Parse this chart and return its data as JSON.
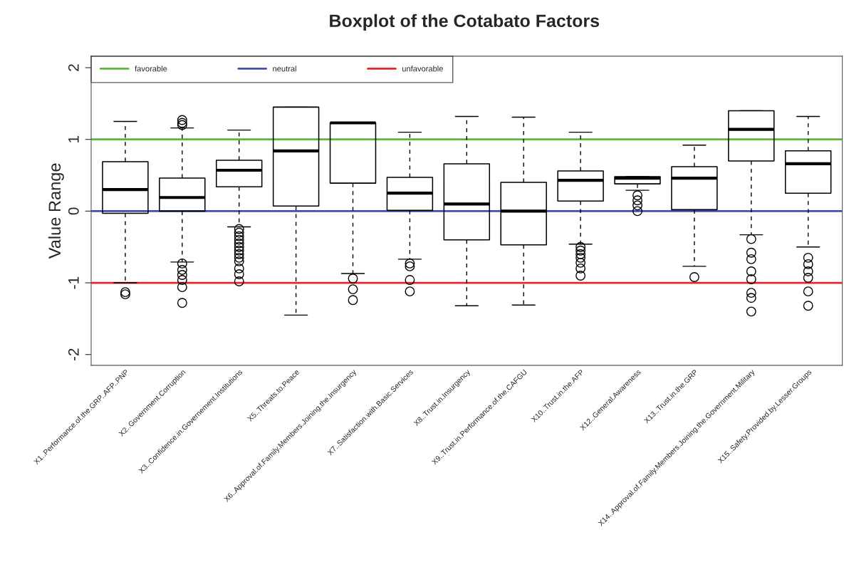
{
  "chart_data": {
    "type": "box",
    "title": "Boxplot of the Cotabato Factors",
    "ylabel": "Value Range",
    "categories": [
      "X1..Performance.of.the.GRP..AFP..PNP",
      "X2..Government.Corruption",
      "X3..Confidence.in.Governement.Institutions",
      "X5..Threats.to.Peace",
      "X6..Approval.of.Family.Members.Joining.the.Insurgency",
      "X7..Satisfaction.with.Basic.Services",
      "X8..Trust.in.Insurgency",
      "X9..Trust.in.Performance.of.the.CAFGU",
      "X10..Trust.in.the.AFP",
      "X12..General.Awareness",
      "X13..Trust.in.the.GRP",
      "X14..Approval.of.Family.Members.Joining.the.Government.Military",
      "X15..Safety.Provided.by.Lesser.Groups"
    ],
    "boxes": [
      {
        "low": -1.0,
        "q1": -0.03,
        "median": 0.3,
        "q3": 0.69,
        "high": 1.25,
        "outliers": [
          -1.13,
          -1.16
        ]
      },
      {
        "low": -0.71,
        "q1": 0.0,
        "median": 0.19,
        "q3": 0.46,
        "high": 1.16,
        "outliers": [
          1.2,
          1.23,
          1.27,
          -0.73,
          -0.82,
          -0.89,
          -0.96,
          -1.06,
          -1.28
        ]
      },
      {
        "low": -0.22,
        "q1": 0.34,
        "median": 0.57,
        "q3": 0.71,
        "high": 1.13,
        "outliers": [
          -0.25,
          -0.3,
          -0.35,
          -0.4,
          -0.45,
          -0.5,
          -0.55,
          -0.6,
          -0.65,
          -0.7,
          -0.8,
          -0.88,
          -0.98
        ]
      },
      {
        "low": -1.45,
        "q1": 0.07,
        "median": 0.84,
        "q3": 1.45,
        "high": 1.45
      },
      {
        "low": -0.87,
        "q1": 0.39,
        "median": 1.23,
        "q3": 1.23,
        "high": 1.23,
        "outliers": [
          -0.94,
          -1.09,
          -1.24
        ]
      },
      {
        "low": -0.67,
        "q1": 0.01,
        "median": 0.25,
        "q3": 0.47,
        "high": 1.1,
        "outliers": [
          -0.73,
          -0.77,
          -0.96,
          -1.12
        ]
      },
      {
        "low": -1.32,
        "q1": -0.4,
        "median": 0.1,
        "q3": 0.66,
        "high": 1.32
      },
      {
        "low": -1.31,
        "q1": -0.47,
        "median": 0.0,
        "q3": 0.4,
        "high": 1.31
      },
      {
        "low": -0.46,
        "q1": 0.14,
        "median": 0.43,
        "q3": 0.56,
        "high": 1.1,
        "outliers": [
          -0.5,
          -0.55,
          -0.6,
          -0.65,
          -0.72,
          -0.8,
          -0.9
        ]
      },
      {
        "low": 0.29,
        "q1": 0.38,
        "median": 0.46,
        "q3": 0.48,
        "high": 0.48,
        "outliers": [
          0.22,
          0.15,
          0.08,
          0.0
        ]
      },
      {
        "low": -0.77,
        "q1": 0.02,
        "median": 0.46,
        "q3": 0.62,
        "high": 0.92,
        "outliers": [
          -0.92
        ]
      },
      {
        "low": -0.33,
        "q1": 0.7,
        "median": 1.14,
        "q3": 1.4,
        "high": 1.4,
        "outliers": [
          -0.39,
          -0.58,
          -0.67,
          -0.84,
          -0.95,
          -1.14,
          -1.21,
          -1.4
        ]
      },
      {
        "low": -0.5,
        "q1": 0.25,
        "median": 0.66,
        "q3": 0.84,
        "high": 1.32,
        "outliers": [
          -0.65,
          -0.74,
          -0.84,
          -0.93,
          -1.12,
          -1.32
        ]
      }
    ],
    "ylim": [
      -2.15,
      2.16
    ],
    "yticks": [
      -2,
      -1,
      0,
      1,
      2
    ],
    "ref_lines": [
      {
        "axis": "y",
        "value": 1,
        "label": "favorable",
        "color": "#5cb83a"
      },
      {
        "axis": "y",
        "value": 0,
        "label": "neutral",
        "color": "#3f51b5"
      },
      {
        "axis": "y",
        "value": -1,
        "label": "unfavorable",
        "color": "#e8262c"
      }
    ],
    "legend": "top left",
    "grid": false
  }
}
